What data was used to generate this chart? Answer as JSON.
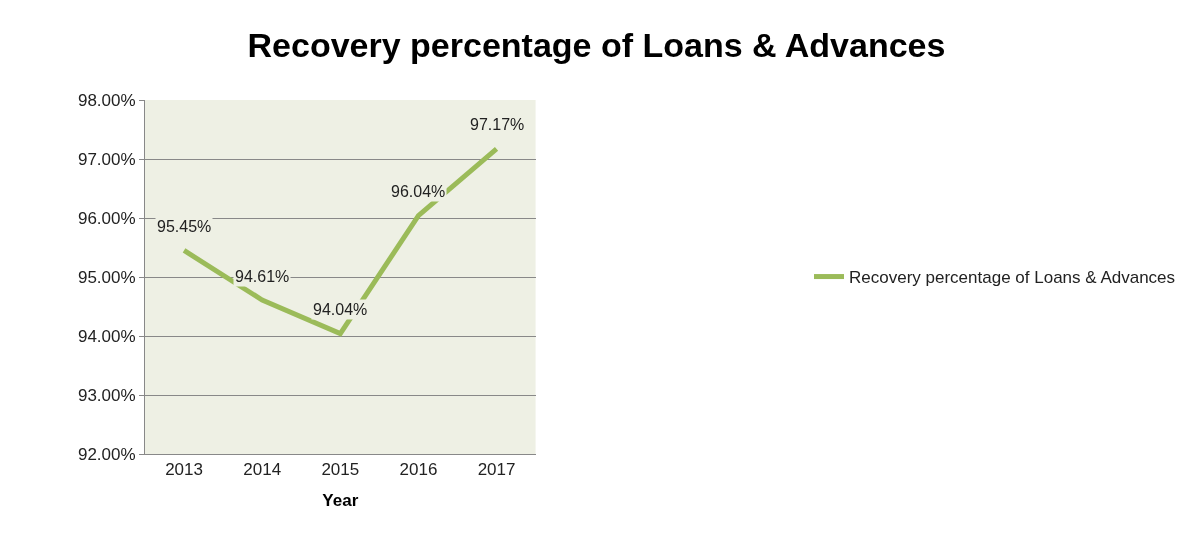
{
  "chart_data": {
    "type": "line",
    "title": "Recovery percentage of Loans & Advances",
    "xlabel": "Year",
    "categories": [
      "2013",
      "2014",
      "2015",
      "2016",
      "2017"
    ],
    "series": [
      {
        "name": "Recovery percentage of Loans & Advances",
        "color": "#9bbb59",
        "values": [
          95.45,
          94.61,
          94.04,
          96.04,
          97.17
        ],
        "value_labels": [
          "95.45%",
          "94.61%",
          "94.04%",
          "96.04%",
          "97.17%"
        ]
      }
    ],
    "ylim": [
      92,
      98
    ],
    "yticks": [
      {
        "value": 92,
        "label": "92.00%"
      },
      {
        "value": 93,
        "label": "93.00%"
      },
      {
        "value": 94,
        "label": "94.00%"
      },
      {
        "value": 95,
        "label": "95.00%"
      },
      {
        "value": 96,
        "label": "96.00%"
      },
      {
        "value": 97,
        "label": "97.00%"
      },
      {
        "value": 98,
        "label": "98.00%"
      }
    ],
    "grid": "y",
    "legend": "right",
    "marker": "none",
    "line_style": "solid"
  }
}
